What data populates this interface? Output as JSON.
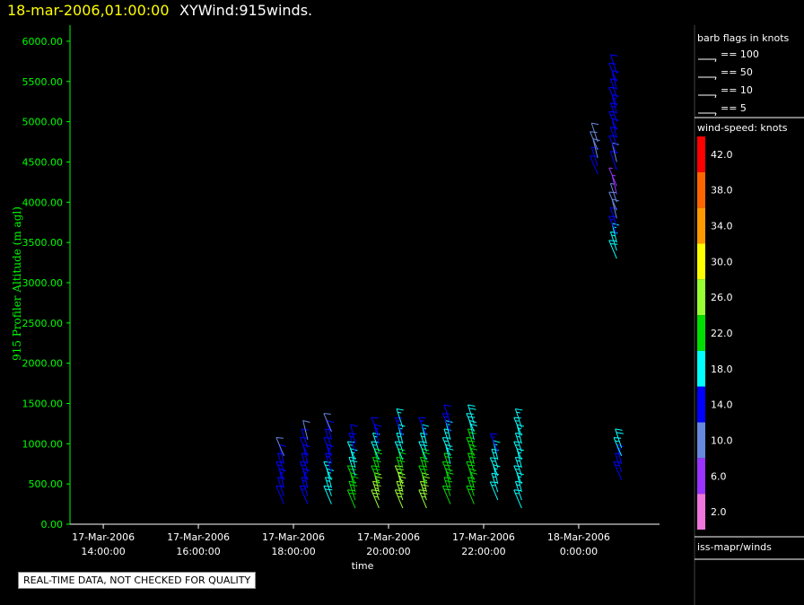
{
  "header": {
    "datetime": "18-mar-2006,01:00:00",
    "title": "XYWind:915winds."
  },
  "quality_note": "REAL-TIME DATA, NOT CHECKED FOR QUALITY",
  "colors": {
    "background": "#000000",
    "axis": "#00ff00",
    "datetime_text": "#ffff00",
    "title_text": "#ffffff"
  },
  "chart_data": {
    "type": "scatter",
    "title": "XYWind:915winds.",
    "ylabel": "915 Profiler Altitude (m agl)",
    "xlabel": "time",
    "ylim": [
      0,
      6200
    ],
    "yticks": [
      "0.00",
      "500.00",
      "1000.00",
      "1500.00",
      "2000.00",
      "2500.00",
      "3000.00",
      "3500.00",
      "4000.00",
      "4500.00",
      "5000.00",
      "5500.00",
      "6000.00"
    ],
    "xlim_hours": [
      13.3,
      25.7
    ],
    "xticks": [
      {
        "hour": 14,
        "date": "17-Mar-2006",
        "time": "14:00:00"
      },
      {
        "hour": 16,
        "date": "17-Mar-2006",
        "time": "16:00:00"
      },
      {
        "hour": 18,
        "date": "17-Mar-2006",
        "time": "18:00:00"
      },
      {
        "hour": 20,
        "date": "17-Mar-2006",
        "time": "20:00:00"
      },
      {
        "hour": 22,
        "date": "17-Mar-2006",
        "time": "22:00:00"
      },
      {
        "hour": 24,
        "date": "18-Mar-2006",
        "time": "0:00:00"
      }
    ],
    "barb_legend": {
      "title": "barb flags in knots",
      "items": [
        "== 100",
        "== 50",
        "== 10",
        "== 5"
      ]
    },
    "colorbar": {
      "title": "wind-speed: knots",
      "levels": [
        {
          "label": "42.0",
          "color": "#ff0000"
        },
        {
          "label": "38.0",
          "color": "#ff6600"
        },
        {
          "label": "34.0",
          "color": "#ff9900"
        },
        {
          "label": "30.0",
          "color": "#ffff00"
        },
        {
          "label": "26.0",
          "color": "#99ff33"
        },
        {
          "label": "22.0",
          "color": "#00dd00"
        },
        {
          "label": "18.0",
          "color": "#00ffff"
        },
        {
          "label": "14.0",
          "color": "#0000ff"
        },
        {
          "label": "10.0",
          "color": "#6688dd"
        },
        {
          "label": "6.0",
          "color": "#9933ff"
        },
        {
          "label": "2.0",
          "color": "#ee77dd"
        }
      ]
    },
    "source_label": "iss-mapr/winds",
    "series": [
      {
        "hour": 17.8,
        "points": [
          [
            250,
            14
          ],
          [
            350,
            14
          ],
          [
            450,
            15
          ],
          [
            550,
            15
          ],
          [
            650,
            14
          ],
          [
            750,
            13
          ],
          [
            850,
            12
          ]
        ]
      },
      {
        "hour": 18.3,
        "points": [
          [
            250,
            16
          ],
          [
            350,
            16
          ],
          [
            450,
            15
          ],
          [
            550,
            15
          ],
          [
            650,
            14
          ],
          [
            750,
            14
          ],
          [
            850,
            13
          ],
          [
            950,
            13
          ],
          [
            1050,
            12
          ]
        ]
      },
      {
        "hour": 18.8,
        "points": [
          [
            250,
            20
          ],
          [
            350,
            19
          ],
          [
            450,
            18
          ],
          [
            550,
            17
          ],
          [
            650,
            16
          ],
          [
            750,
            15
          ],
          [
            850,
            14
          ],
          [
            950,
            14
          ],
          [
            1050,
            13
          ],
          [
            1150,
            12
          ]
        ]
      },
      {
        "hour": 19.3,
        "points": [
          [
            200,
            24
          ],
          [
            300,
            23
          ],
          [
            400,
            22
          ],
          [
            500,
            21
          ],
          [
            600,
            20
          ],
          [
            700,
            18
          ],
          [
            800,
            17
          ],
          [
            900,
            16
          ],
          [
            1000,
            13
          ]
        ]
      },
      {
        "hour": 19.8,
        "points": [
          [
            200,
            27
          ],
          [
            300,
            26
          ],
          [
            400,
            25
          ],
          [
            500,
            24
          ],
          [
            600,
            23
          ],
          [
            700,
            21
          ],
          [
            800,
            19
          ],
          [
            900,
            17
          ],
          [
            1000,
            15
          ],
          [
            1100,
            14
          ]
        ]
      },
      {
        "hour": 20.3,
        "points": [
          [
            200,
            28
          ],
          [
            300,
            27
          ],
          [
            400,
            26
          ],
          [
            500,
            25
          ],
          [
            600,
            23
          ],
          [
            700,
            21
          ],
          [
            800,
            19
          ],
          [
            900,
            18
          ],
          [
            1000,
            17
          ],
          [
            1100,
            16
          ],
          [
            1200,
            17
          ]
        ]
      },
      {
        "hour": 20.8,
        "points": [
          [
            200,
            26
          ],
          [
            300,
            26
          ],
          [
            400,
            25
          ],
          [
            500,
            24
          ],
          [
            600,
            23
          ],
          [
            700,
            22
          ],
          [
            800,
            20
          ],
          [
            900,
            19
          ],
          [
            1000,
            18
          ],
          [
            1100,
            16
          ]
        ]
      },
      {
        "hour": 21.3,
        "points": [
          [
            250,
            24
          ],
          [
            350,
            24
          ],
          [
            450,
            23
          ],
          [
            550,
            22
          ],
          [
            650,
            21
          ],
          [
            750,
            20
          ],
          [
            850,
            19
          ],
          [
            950,
            18
          ],
          [
            1050,
            17
          ],
          [
            1150,
            15
          ],
          [
            1250,
            14
          ]
        ]
      },
      {
        "hour": 21.8,
        "points": [
          [
            250,
            24
          ],
          [
            350,
            24
          ],
          [
            450,
            23
          ],
          [
            550,
            23
          ],
          [
            650,
            22
          ],
          [
            750,
            22
          ],
          [
            850,
            21
          ],
          [
            950,
            21
          ],
          [
            1050,
            20
          ],
          [
            1150,
            20
          ],
          [
            1250,
            20
          ]
        ]
      },
      {
        "hour": 22.3,
        "points": [
          [
            300,
            17
          ],
          [
            400,
            18
          ],
          [
            500,
            18
          ],
          [
            600,
            17
          ],
          [
            700,
            18
          ],
          [
            800,
            17
          ],
          [
            900,
            16
          ]
        ]
      },
      {
        "hour": 22.8,
        "points": [
          [
            200,
            19
          ],
          [
            300,
            19
          ],
          [
            400,
            18
          ],
          [
            500,
            19
          ],
          [
            600,
            19
          ],
          [
            700,
            18
          ],
          [
            800,
            18
          ],
          [
            900,
            19
          ],
          [
            1000,
            18
          ],
          [
            1100,
            17
          ],
          [
            1200,
            18
          ]
        ]
      },
      {
        "hour": 24.4,
        "points": [
          [
            4350,
            14
          ],
          [
            4450,
            13
          ],
          [
            4550,
            12
          ],
          [
            4650,
            11
          ],
          [
            4750,
            10
          ]
        ]
      },
      {
        "hour": 24.8,
        "points": [
          [
            3300,
            20
          ],
          [
            3400,
            19
          ],
          [
            3500,
            18
          ],
          [
            3600,
            16
          ],
          [
            3700,
            14
          ],
          [
            3800,
            12
          ],
          [
            3900,
            10
          ],
          [
            4000,
            9
          ],
          [
            4100,
            8
          ],
          [
            4200,
            7
          ],
          [
            4400,
            13
          ],
          [
            4500,
            12
          ],
          [
            4600,
            14
          ],
          [
            4700,
            13
          ],
          [
            4800,
            14
          ],
          [
            4900,
            15
          ],
          [
            5000,
            16
          ],
          [
            5100,
            15
          ],
          [
            5200,
            14
          ],
          [
            5300,
            14
          ],
          [
            5400,
            13
          ],
          [
            5500,
            13
          ],
          [
            5600,
            13
          ]
        ]
      },
      {
        "hour": 24.9,
        "points": [
          [
            550,
            15
          ],
          [
            650,
            14
          ],
          [
            750,
            16
          ],
          [
            850,
            18
          ],
          [
            950,
            20
          ]
        ]
      }
    ]
  }
}
